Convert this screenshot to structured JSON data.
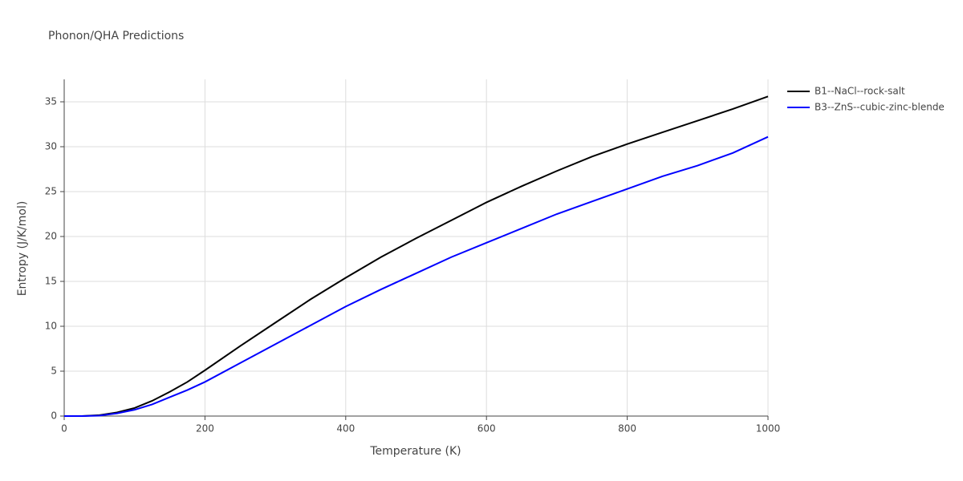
{
  "chart_data": {
    "type": "line",
    "title": "Phonon/QHA Predictions",
    "x_label": "Temperature (K)",
    "y_label": "Entropy (J/K/mol)",
    "x": [
      0,
      25,
      50,
      75,
      100,
      125,
      150,
      175,
      200,
      250,
      300,
      350,
      400,
      450,
      500,
      550,
      600,
      650,
      700,
      750,
      800,
      850,
      900,
      950,
      1000
    ],
    "series": [
      {
        "name": "B1--NaCl--rock-salt",
        "color": "#000000",
        "values": [
          0,
          0,
          0.1,
          0.4,
          0.9,
          1.7,
          2.7,
          3.8,
          5.1,
          7.8,
          10.4,
          13.0,
          15.4,
          17.7,
          19.8,
          21.8,
          23.8,
          25.6,
          27.3,
          28.9,
          30.3,
          31.6,
          32.9,
          34.2,
          35.6
        ]
      },
      {
        "name": "B3--ZnS--cubic-zinc-blende",
        "color": "#0000ff",
        "values": [
          0,
          0,
          0.05,
          0.3,
          0.7,
          1.3,
          2.1,
          2.9,
          3.8,
          5.9,
          8.0,
          10.1,
          12.2,
          14.1,
          15.9,
          17.7,
          19.3,
          20.9,
          22.5,
          23.9,
          25.3,
          26.7,
          27.9,
          29.3,
          31.1
        ]
      }
    ],
    "xlim": [
      0,
      1000
    ],
    "xticks": [
      0,
      200,
      400,
      600,
      800,
      1000
    ],
    "ylim": [
      0,
      37.5
    ],
    "yticks": [
      0,
      5,
      10,
      15,
      20,
      25,
      30,
      35
    ],
    "grid": true,
    "legend": "outside-right"
  }
}
